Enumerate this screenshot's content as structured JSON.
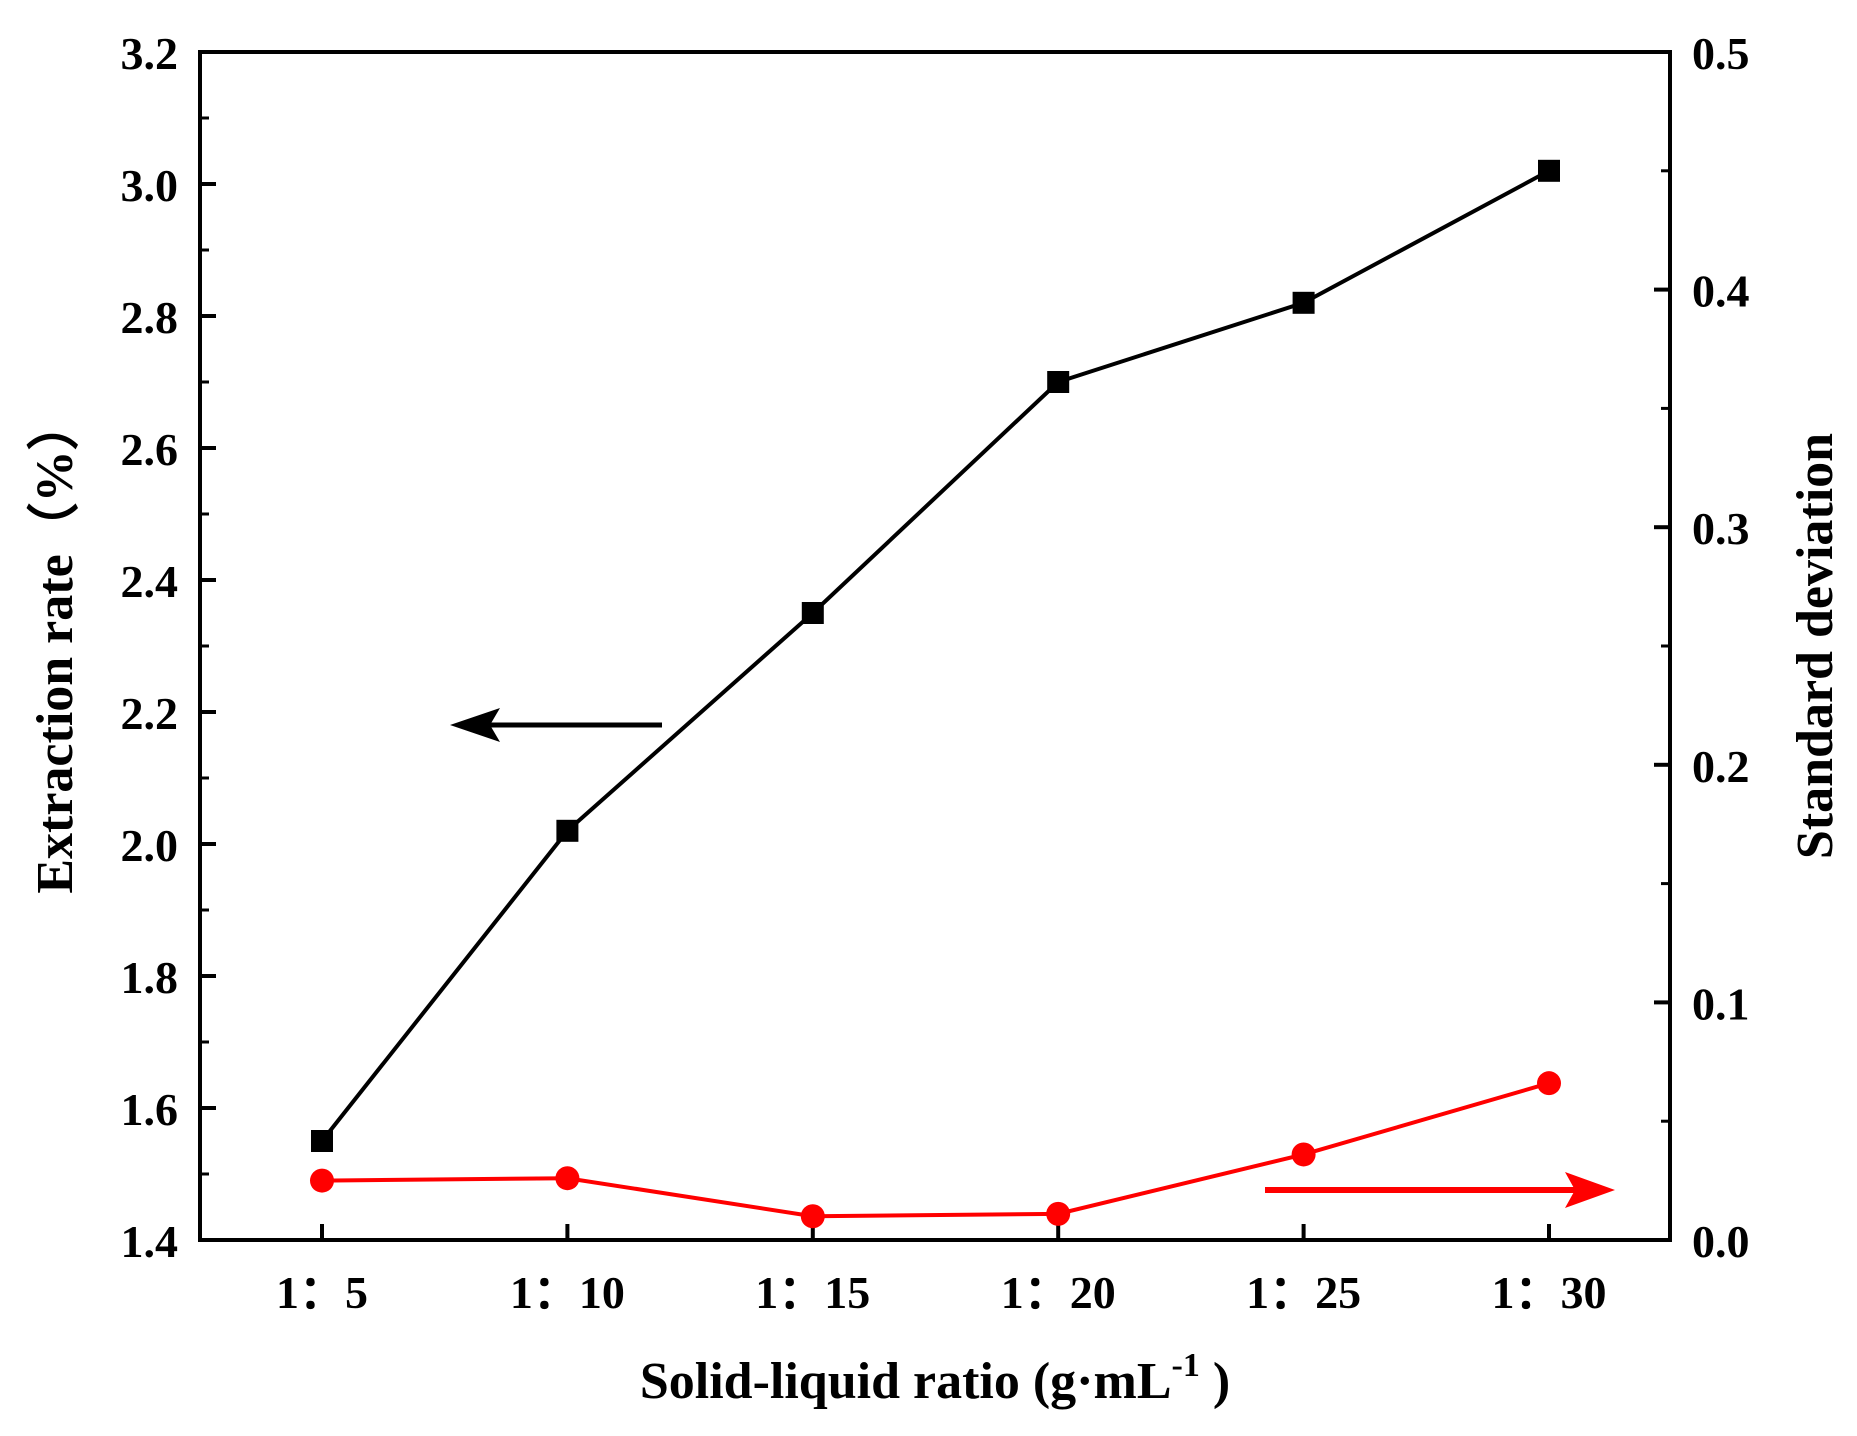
{
  "chart_data": {
    "type": "line",
    "title": "",
    "xlabel": "Solid-liquid ratio (g·mL",
    "xlabel_sup": "-1",
    "xlabel_close": " )",
    "ylabel_left": "Extraction rate（%）",
    "ylabel_right": "Standard deviation",
    "categories": [
      "1：5",
      "1：10",
      "1：15",
      "1：20",
      "1：25",
      "1：30"
    ],
    "ylim_left": [
      1.4,
      3.2
    ],
    "yticks_left": [
      "1.4",
      "1.6",
      "1.8",
      "2.0",
      "2.2",
      "2.4",
      "2.6",
      "2.8",
      "3.0",
      "3.2"
    ],
    "ylim_right": [
      0.0,
      0.5
    ],
    "yticks_right": [
      "0.0",
      "0.1",
      "0.2",
      "0.3",
      "0.4",
      "0.5"
    ],
    "series": [
      {
        "name": "Extraction rate",
        "axis": "left",
        "color": "#000000",
        "marker": "square",
        "values": [
          1.55,
          2.02,
          2.35,
          2.7,
          2.82,
          3.02
        ]
      },
      {
        "name": "Standard deviation",
        "axis": "right",
        "color": "#ff0000",
        "marker": "circle",
        "values": [
          0.025,
          0.026,
          0.01,
          0.011,
          0.036,
          0.066
        ]
      }
    ],
    "annotations": [
      {
        "type": "arrow",
        "direction": "left",
        "points_to": "left axis",
        "color": "#000000"
      },
      {
        "type": "arrow",
        "direction": "right",
        "points_to": "right axis",
        "color": "#ff0000"
      }
    ]
  }
}
